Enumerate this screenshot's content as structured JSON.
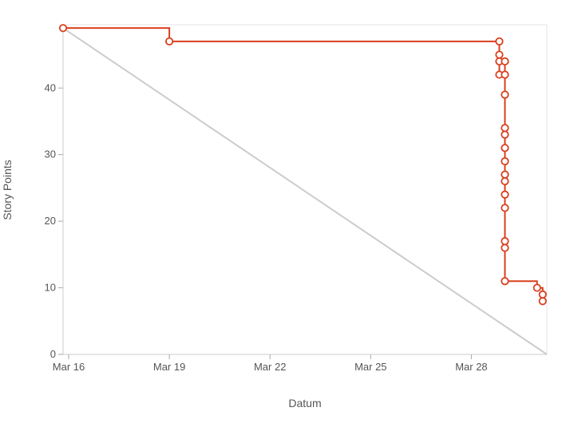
{
  "chart_data": {
    "type": "line",
    "title": "",
    "xlabel": "Datum",
    "ylabel": "Story Points",
    "x_ticks": [
      "Mar 16",
      "Mar 19",
      "Mar 22",
      "Mar 25",
      "Mar 28"
    ],
    "y_ticks": [
      "0",
      "10",
      "20",
      "30",
      "40"
    ],
    "xlim": [
      "2024-03-15T20:00",
      "2024-03-30T06:00"
    ],
    "ylim": [
      0,
      49.5
    ],
    "grid": false,
    "legend": "none",
    "series": [
      {
        "type": "ideal",
        "color": "#cccccc",
        "points": [
          {
            "x": "2024-03-15T20:00",
            "y": 49
          },
          {
            "x": "2024-03-30T06:00",
            "y": 0
          }
        ]
      },
      {
        "type": "remaining",
        "color": "#d93f1f",
        "step": true,
        "points": [
          {
            "x": "2024-03-15T20:00",
            "y": 49
          },
          {
            "x": "2024-03-19T00:00",
            "y": 47
          },
          {
            "x": "2024-03-28T20:00",
            "y": 47
          },
          {
            "x": "2024-03-28T20:00",
            "y": 45
          },
          {
            "x": "2024-03-28T20:00",
            "y": 44
          },
          {
            "x": "2024-03-28T20:00",
            "y": 42
          },
          {
            "x": "2024-03-29T00:00",
            "y": 44
          },
          {
            "x": "2024-03-29T00:00",
            "y": 42
          },
          {
            "x": "2024-03-29T00:00",
            "y": 39
          },
          {
            "x": "2024-03-29T00:00",
            "y": 34
          },
          {
            "x": "2024-03-29T00:00",
            "y": 33
          },
          {
            "x": "2024-03-29T00:00",
            "y": 31
          },
          {
            "x": "2024-03-29T00:00",
            "y": 29
          },
          {
            "x": "2024-03-29T00:00",
            "y": 27
          },
          {
            "x": "2024-03-29T00:00",
            "y": 26
          },
          {
            "x": "2024-03-29T00:00",
            "y": 24
          },
          {
            "x": "2024-03-29T00:00",
            "y": 22
          },
          {
            "x": "2024-03-29T00:00",
            "y": 17
          },
          {
            "x": "2024-03-29T00:00",
            "y": 16
          },
          {
            "x": "2024-03-29T00:00",
            "y": 11
          },
          {
            "x": "2024-03-29T23:00",
            "y": 10
          },
          {
            "x": "2024-03-30T03:00",
            "y": 9
          },
          {
            "x": "2024-03-30T03:00",
            "y": 8
          }
        ]
      }
    ]
  }
}
